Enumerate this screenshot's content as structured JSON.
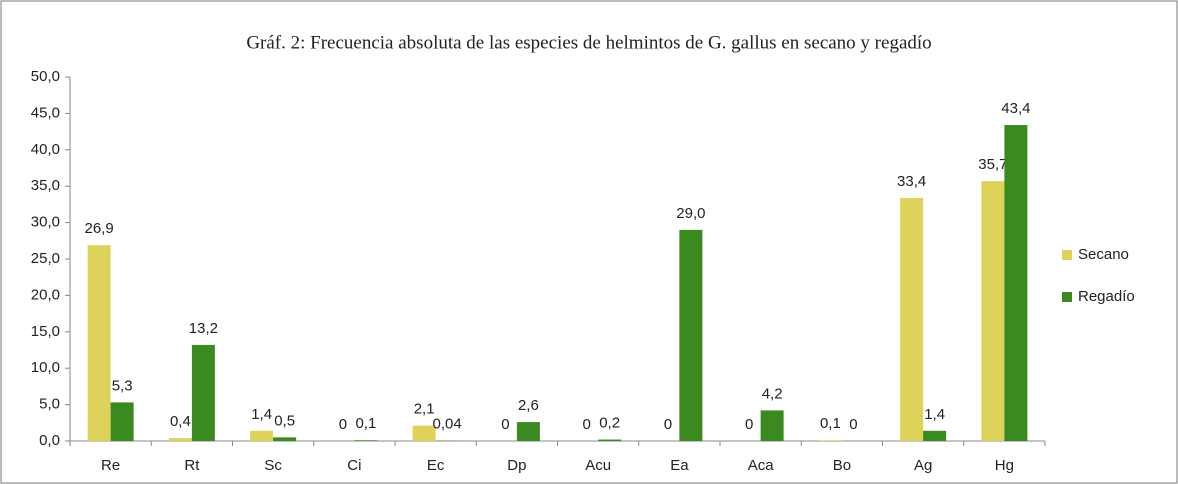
{
  "chart_data": {
    "type": "bar",
    "title": "Gráf. 2: Frecuencia absoluta de las especies de helmintos de G. gallus en secano y regadío",
    "categories": [
      "Re",
      "Rt",
      "Sc",
      "Ci",
      "Ec",
      "Dp",
      "Acu",
      "Ea",
      "Aca",
      "Bo",
      "Ag",
      "Hg"
    ],
    "series": [
      {
        "name": "Secano",
        "color": "#ddd25a",
        "values": [
          26.9,
          0.4,
          1.4,
          0,
          2.1,
          0,
          0,
          0,
          0,
          0.1,
          33.4,
          35.7
        ],
        "value_labels": [
          "26,9",
          "0,4",
          "1,4",
          "0",
          "2,1",
          "0",
          "0",
          "0",
          "0",
          "0,1",
          "33,4",
          "35,7"
        ]
      },
      {
        "name": "Regadío",
        "color": "#3a8a1f",
        "values": [
          5.3,
          13.2,
          0.5,
          0.1,
          0.04,
          2.6,
          0.2,
          29.0,
          4.2,
          0,
          1.4,
          43.4
        ],
        "value_labels": [
          "5,3",
          "13,2",
          "0,5",
          "0,1",
          "0,04",
          "2,6",
          "0,2",
          "29,0",
          "4,2",
          "0",
          "1,4",
          "43,4"
        ]
      }
    ],
    "ylim": [
      0,
      50
    ],
    "yticks": [
      {
        "value": 0,
        "label": "0,0"
      },
      {
        "value": 5,
        "label": "5,0"
      },
      {
        "value": 10,
        "label": "10,0"
      },
      {
        "value": 15,
        "label": "15,0"
      },
      {
        "value": 20,
        "label": "20,0"
      },
      {
        "value": 25,
        "label": "25,0"
      },
      {
        "value": 30,
        "label": "30,0"
      },
      {
        "value": 35,
        "label": "35,0"
      },
      {
        "value": 40,
        "label": "40,0"
      },
      {
        "value": 45,
        "label": "45,0"
      },
      {
        "value": 50,
        "label": "50,0"
      }
    ],
    "legend": "right",
    "grid": false
  }
}
